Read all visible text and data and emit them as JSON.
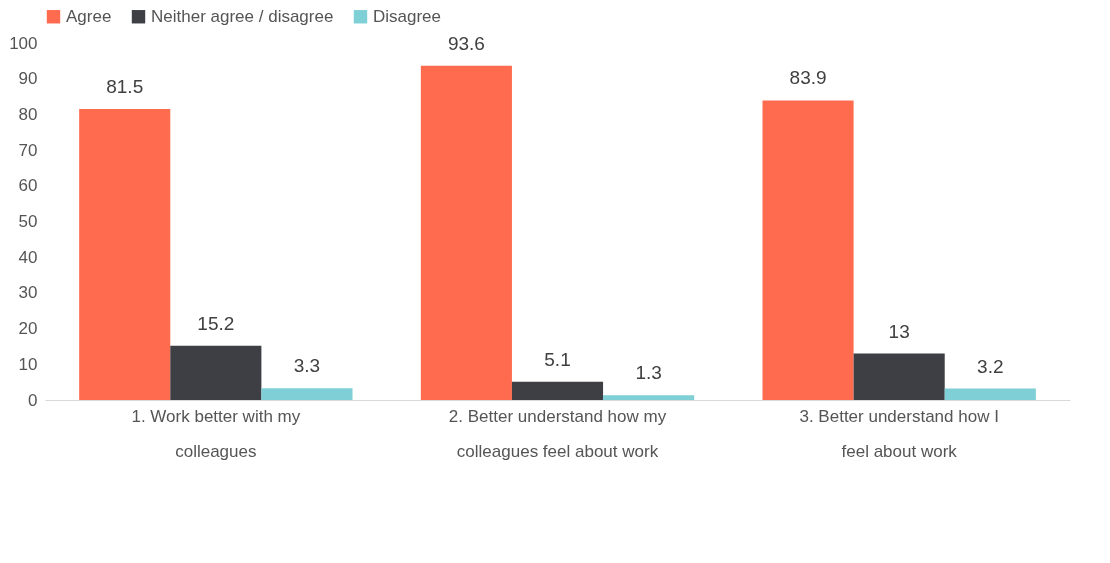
{
  "chart_data": {
    "type": "bar",
    "categories": [
      "1. Work better with my colleagues",
      "2. Better understand how my colleagues feel about work",
      "3. Better understand how I feel about work"
    ],
    "series": [
      {
        "name": "Agree",
        "color": "#ff6b4f",
        "values": [
          81.5,
          93.6,
          83.9
        ]
      },
      {
        "name": "Neither agree / disagree",
        "color": "#3d3f44",
        "values": [
          15.2,
          5.1,
          13
        ]
      },
      {
        "name": "Disagree",
        "color": "#7ecfd6",
        "values": [
          3.3,
          1.3,
          3.2
        ]
      }
    ],
    "ylim": [
      0,
      100
    ],
    "yticks": [
      0,
      10,
      20,
      30,
      40,
      50,
      60,
      70,
      80,
      90,
      100
    ],
    "grid": false,
    "legend": "top",
    "data_labels": true
  }
}
